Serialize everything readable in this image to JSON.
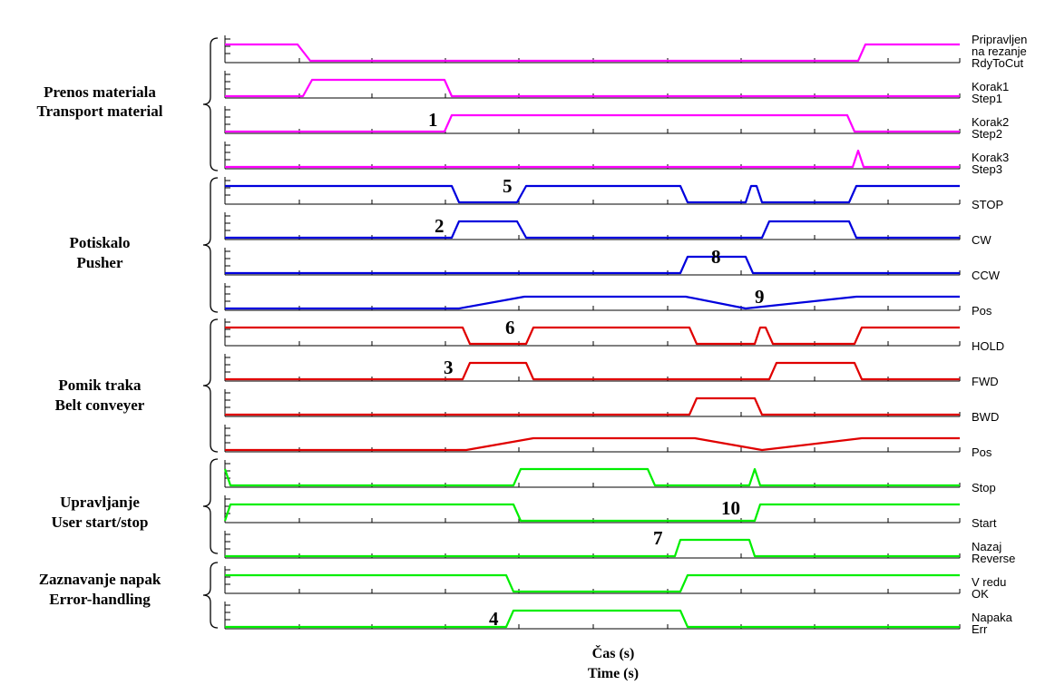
{
  "colors": {
    "magenta": "#ff00ff",
    "blue": "#0000dd",
    "red": "#e00000",
    "green": "#00ee00"
  },
  "groups": [
    {
      "line1": "Prenos  materiala",
      "line2": "Transport material"
    },
    {
      "line1": "Potiskalo",
      "line2": "Pusher"
    },
    {
      "line1": "Pomik traka",
      "line2": "Belt conveyer"
    },
    {
      "line1": "Upravljanje",
      "line2": "User start/stop"
    },
    {
      "line1": "Zaznavanje napak",
      "line2": "Error-handling"
    }
  ],
  "signals": [
    {
      "name": "RdyToCut",
      "alt": [
        "Pripravljen",
        "na rezanje"
      ],
      "color": "magenta",
      "shape": "digital",
      "levels": [
        [
          0,
          1
        ],
        [
          80,
          1
        ],
        [
          94,
          0
        ],
        [
          698,
          0
        ],
        [
          706,
          1
        ],
        [
          810,
          1
        ]
      ]
    },
    {
      "name": "Step1",
      "alt": [
        "Korak1"
      ],
      "color": "magenta",
      "shape": "digital",
      "levels": [
        [
          0,
          0
        ],
        [
          86,
          0
        ],
        [
          96,
          1
        ],
        [
          242,
          1
        ],
        [
          250,
          0
        ],
        [
          810,
          0
        ]
      ]
    },
    {
      "name": "Step2",
      "alt": [
        "Korak2"
      ],
      "color": "magenta",
      "shape": "digital",
      "levels": [
        [
          0,
          0
        ],
        [
          242,
          0
        ],
        [
          250,
          1
        ],
        [
          686,
          1
        ],
        [
          694,
          0
        ],
        [
          810,
          0
        ]
      ]
    },
    {
      "name": "Step3",
      "alt": [
        "Korak3"
      ],
      "color": "magenta",
      "shape": "digital",
      "levels": [
        [
          0,
          0
        ],
        [
          692,
          0
        ],
        [
          698,
          1
        ],
        [
          704,
          0
        ],
        [
          810,
          0
        ]
      ]
    },
    {
      "name": "STOP",
      "alt": [],
      "color": "blue",
      "shape": "digital",
      "levels": [
        [
          0,
          1
        ],
        [
          250,
          1
        ],
        [
          258,
          0
        ],
        [
          322,
          0
        ],
        [
          332,
          1
        ],
        [
          502,
          1
        ],
        [
          510,
          0
        ],
        [
          574,
          0
        ],
        [
          580,
          1
        ],
        [
          586,
          1
        ],
        [
          592,
          0
        ],
        [
          688,
          0
        ],
        [
          696,
          1
        ],
        [
          810,
          1
        ]
      ]
    },
    {
      "name": "CW",
      "alt": [],
      "color": "blue",
      "shape": "digital",
      "levels": [
        [
          0,
          0
        ],
        [
          250,
          0
        ],
        [
          258,
          1
        ],
        [
          322,
          1
        ],
        [
          332,
          0
        ],
        [
          592,
          0
        ],
        [
          600,
          1
        ],
        [
          688,
          1
        ],
        [
          696,
          0
        ],
        [
          810,
          0
        ]
      ]
    },
    {
      "name": "CCW",
      "alt": [],
      "color": "blue",
      "shape": "digital",
      "levels": [
        [
          0,
          0
        ],
        [
          502,
          0
        ],
        [
          510,
          1
        ],
        [
          574,
          1
        ],
        [
          582,
          0
        ],
        [
          810,
          0
        ]
      ]
    },
    {
      "name": "Pos",
      "alt": [],
      "color": "blue",
      "shape": "analog",
      "levels": [
        [
          0,
          0
        ],
        [
          258,
          0
        ],
        [
          330,
          0.72
        ],
        [
          508,
          0.72
        ],
        [
          574,
          0
        ],
        [
          696,
          0.72
        ],
        [
          810,
          0.72
        ]
      ]
    },
    {
      "name": "HOLD",
      "alt": [],
      "color": "red",
      "shape": "digital",
      "levels": [
        [
          0,
          1
        ],
        [
          262,
          1
        ],
        [
          270,
          0
        ],
        [
          332,
          0
        ],
        [
          340,
          1
        ],
        [
          512,
          1
        ],
        [
          520,
          0
        ],
        [
          584,
          0
        ],
        [
          590,
          1
        ],
        [
          596,
          1
        ],
        [
          604,
          0
        ],
        [
          694,
          0
        ],
        [
          702,
          1
        ],
        [
          810,
          1
        ]
      ]
    },
    {
      "name": "FWD",
      "alt": [],
      "color": "red",
      "shape": "digital",
      "levels": [
        [
          0,
          0
        ],
        [
          262,
          0
        ],
        [
          270,
          1
        ],
        [
          332,
          1
        ],
        [
          340,
          0
        ],
        [
          600,
          0
        ],
        [
          608,
          1
        ],
        [
          694,
          1
        ],
        [
          702,
          0
        ],
        [
          810,
          0
        ]
      ]
    },
    {
      "name": "BWD",
      "alt": [],
      "color": "red",
      "shape": "digital",
      "levels": [
        [
          0,
          0
        ],
        [
          512,
          0
        ],
        [
          520,
          1
        ],
        [
          584,
          1
        ],
        [
          592,
          0
        ],
        [
          810,
          0
        ]
      ]
    },
    {
      "name": "Pos",
      "alt": [],
      "color": "red",
      "shape": "analog",
      "levels": [
        [
          0,
          0
        ],
        [
          266,
          0
        ],
        [
          340,
          0.72
        ],
        [
          518,
          0.72
        ],
        [
          592,
          0
        ],
        [
          702,
          0.72
        ],
        [
          810,
          0.72
        ]
      ]
    },
    {
      "name": "Stop",
      "alt": [],
      "color": "green",
      "shape": "digital",
      "levels": [
        [
          0,
          1
        ],
        [
          6,
          0
        ],
        [
          318,
          0
        ],
        [
          326,
          1
        ],
        [
          466,
          1
        ],
        [
          474,
          0
        ],
        [
          578,
          0
        ],
        [
          584,
          1
        ],
        [
          590,
          0
        ],
        [
          810,
          0
        ]
      ]
    },
    {
      "name": "Start",
      "alt": [],
      "color": "green",
      "shape": "digital",
      "levels": [
        [
          0,
          0
        ],
        [
          6,
          1
        ],
        [
          318,
          1
        ],
        [
          326,
          0
        ],
        [
          584,
          0
        ],
        [
          590,
          1
        ],
        [
          810,
          1
        ]
      ]
    },
    {
      "name": "Reverse",
      "alt": [
        "Nazaj"
      ],
      "color": "green",
      "shape": "digital",
      "levels": [
        [
          0,
          0
        ],
        [
          496,
          0
        ],
        [
          502,
          1
        ],
        [
          578,
          1
        ],
        [
          584,
          0
        ],
        [
          810,
          0
        ]
      ]
    },
    {
      "name": "OK",
      "alt": [
        "V redu"
      ],
      "color": "green",
      "shape": "digital",
      "levels": [
        [
          0,
          1
        ],
        [
          310,
          1
        ],
        [
          318,
          0
        ],
        [
          502,
          0
        ],
        [
          510,
          1
        ],
        [
          810,
          1
        ]
      ]
    },
    {
      "name": "Err",
      "alt": [
        "Napaka"
      ],
      "color": "green",
      "shape": "digital",
      "levels": [
        [
          0,
          0
        ],
        [
          310,
          0
        ],
        [
          318,
          1
        ],
        [
          502,
          1
        ],
        [
          510,
          0
        ],
        [
          810,
          0
        ]
      ]
    }
  ],
  "markers": [
    "1",
    "2",
    "3",
    "4",
    "5",
    "6",
    "7",
    "8",
    "9",
    "10"
  ],
  "xlabel": {
    "line1": "Čas (s)",
    "line2": "Time (s)"
  }
}
